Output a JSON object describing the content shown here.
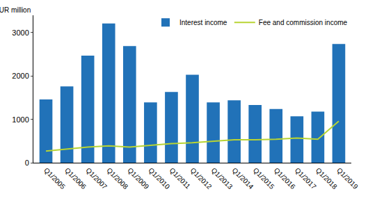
{
  "chart_data": {
    "type": "bar",
    "y_label": "EUR million",
    "categories": [
      "Q1/2005",
      "Q1/2006",
      "Q1/2007",
      "Q1/2008",
      "Q1/2009",
      "Q1/2010",
      "Q1/2011",
      "Q1/2012",
      "Q1/2013",
      "Q1/2014",
      "Q1/2015",
      "Q1/2016",
      "Q1/2017",
      "Q1/2018",
      "Q1/2019"
    ],
    "series": [
      {
        "name": "Interest income",
        "type": "bar",
        "color": "#2172b8",
        "values": [
          1460,
          1760,
          2470,
          3210,
          2690,
          1390,
          1630,
          2030,
          1390,
          1440,
          1330,
          1240,
          1070,
          1180,
          2740
        ]
      },
      {
        "name": "Fee and commission income",
        "type": "line",
        "color": "#b8d433",
        "values": [
          270,
          320,
          360,
          390,
          360,
          400,
          440,
          460,
          500,
          530,
          530,
          540,
          570,
          540,
          960
        ]
      }
    ],
    "ylim": [
      0,
      3400
    ],
    "yticks": [
      0,
      1000,
      2000,
      3000
    ],
    "grid": false,
    "legend": "top-right"
  }
}
